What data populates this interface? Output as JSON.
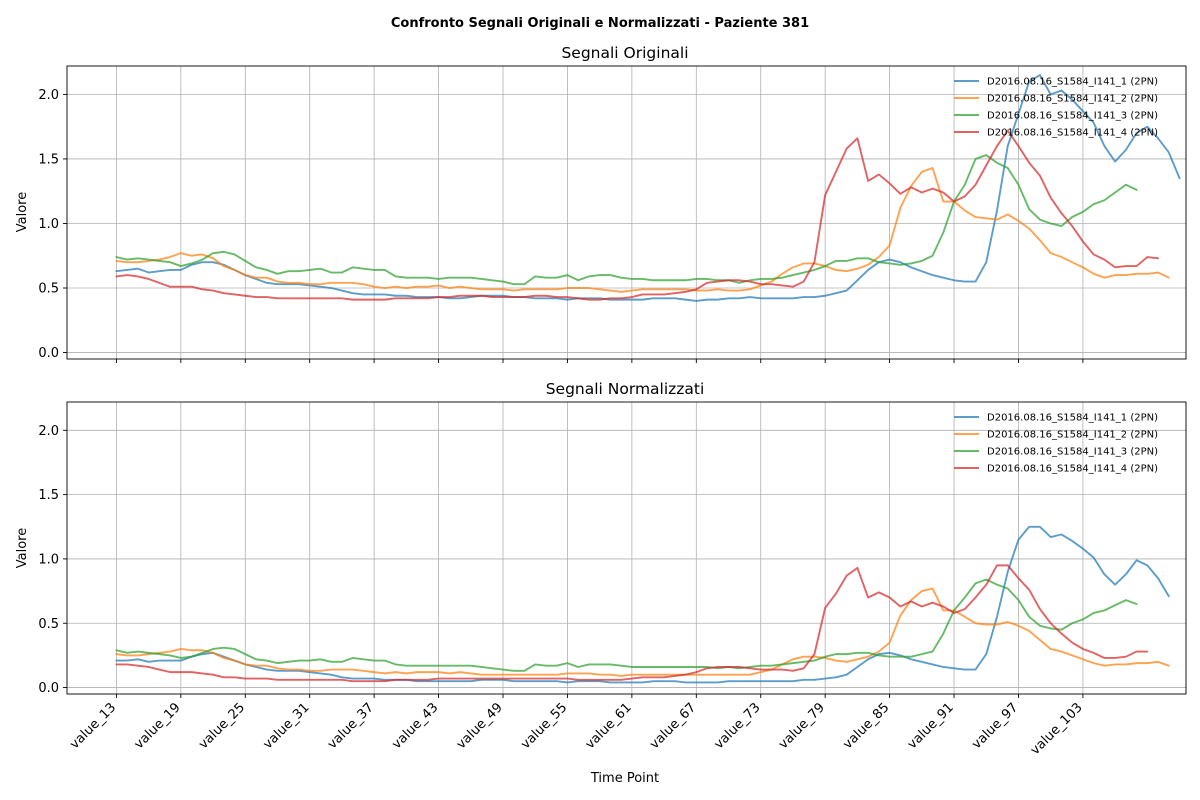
{
  "suptitle": "Confronto Segnali Originali e Normalizzati - Paziente 381",
  "series_colors": [
    "#1f77b4",
    "#ff7f0e",
    "#2ca02c",
    "#d62728"
  ],
  "chart_data": [
    {
      "type": "line",
      "title": "Segnali Originali",
      "xlabel": "",
      "ylabel": "Valore",
      "ylim": [
        -0.05,
        2.22
      ],
      "yticks": [
        0.0,
        0.5,
        1.0,
        1.5,
        2.0
      ],
      "ytick_labels": [
        "0.0",
        "0.5",
        "1.0",
        "1.5",
        "2.0"
      ],
      "grid": true,
      "legend_position": "top-right",
      "x_start_index": 13,
      "xtick_labels": [
        "value_13",
        "value_19",
        "value_25",
        "value_31",
        "value_37",
        "value_43",
        "value_49",
        "value_55",
        "value_61",
        "value_67",
        "value_73",
        "value_79",
        "value_85",
        "value_91",
        "value_97",
        "value_103"
      ],
      "series": [
        {
          "name": "D2016.08.16_S1584_I141_1 (2PN)",
          "values": [
            0.63,
            0.64,
            0.65,
            0.62,
            0.63,
            0.64,
            0.64,
            0.68,
            0.7,
            0.7,
            0.68,
            0.64,
            0.6,
            0.57,
            0.54,
            0.53,
            0.53,
            0.53,
            0.52,
            0.51,
            0.5,
            0.48,
            0.46,
            0.45,
            0.45,
            0.45,
            0.44,
            0.44,
            0.43,
            0.43,
            0.43,
            0.42,
            0.42,
            0.43,
            0.44,
            0.44,
            0.44,
            0.43,
            0.43,
            0.42,
            0.42,
            0.42,
            0.41,
            0.42,
            0.42,
            0.42,
            0.41,
            0.41,
            0.41,
            0.41,
            0.42,
            0.42,
            0.42,
            0.41,
            0.4,
            0.41,
            0.41,
            0.42,
            0.42,
            0.43,
            0.42,
            0.42,
            0.42,
            0.42,
            0.43,
            0.43,
            0.44,
            0.46,
            0.48,
            0.56,
            0.64,
            0.7,
            0.72,
            0.7,
            0.66,
            0.63,
            0.6,
            0.58,
            0.56,
            0.55,
            0.55,
            0.7,
            1.1,
            1.6,
            1.85,
            2.1,
            2.15,
            2.0,
            2.03,
            1.96,
            1.87,
            1.78,
            1.6,
            1.48,
            1.57,
            1.7,
            1.75,
            1.66,
            1.55,
            1.35
          ]
        },
        {
          "name": "D2016.08.16_S1584_I141_2 (2PN)",
          "values": [
            0.71,
            0.7,
            0.7,
            0.71,
            0.72,
            0.74,
            0.77,
            0.75,
            0.76,
            0.73,
            0.67,
            0.64,
            0.6,
            0.58,
            0.58,
            0.55,
            0.54,
            0.54,
            0.53,
            0.53,
            0.54,
            0.54,
            0.54,
            0.53,
            0.51,
            0.5,
            0.51,
            0.5,
            0.51,
            0.51,
            0.52,
            0.5,
            0.51,
            0.5,
            0.49,
            0.49,
            0.49,
            0.48,
            0.49,
            0.49,
            0.49,
            0.49,
            0.5,
            0.5,
            0.5,
            0.49,
            0.48,
            0.47,
            0.48,
            0.49,
            0.49,
            0.49,
            0.49,
            0.49,
            0.48,
            0.48,
            0.49,
            0.48,
            0.48,
            0.49,
            0.52,
            0.55,
            0.61,
            0.66,
            0.69,
            0.69,
            0.67,
            0.64,
            0.63,
            0.65,
            0.68,
            0.74,
            0.83,
            1.12,
            1.29,
            1.4,
            1.43,
            1.17,
            1.17,
            1.1,
            1.05,
            1.04,
            1.03,
            1.07,
            1.02,
            0.96,
            0.87,
            0.77,
            0.74,
            0.7,
            0.66,
            0.61,
            0.58,
            0.6,
            0.6,
            0.61,
            0.61,
            0.62,
            0.58
          ]
        },
        {
          "name": "D2016.08.16_S1584_I141_3 (2PN)",
          "values": [
            0.74,
            0.72,
            0.73,
            0.72,
            0.71,
            0.7,
            0.67,
            0.69,
            0.72,
            0.77,
            0.78,
            0.76,
            0.71,
            0.66,
            0.64,
            0.61,
            0.63,
            0.63,
            0.64,
            0.65,
            0.62,
            0.62,
            0.66,
            0.65,
            0.64,
            0.64,
            0.59,
            0.58,
            0.58,
            0.58,
            0.57,
            0.58,
            0.58,
            0.58,
            0.57,
            0.56,
            0.55,
            0.53,
            0.53,
            0.59,
            0.58,
            0.58,
            0.6,
            0.56,
            0.59,
            0.6,
            0.6,
            0.58,
            0.57,
            0.57,
            0.56,
            0.56,
            0.56,
            0.56,
            0.57,
            0.57,
            0.56,
            0.56,
            0.54,
            0.56,
            0.57,
            0.57,
            0.58,
            0.6,
            0.62,
            0.64,
            0.67,
            0.71,
            0.71,
            0.73,
            0.73,
            0.7,
            0.69,
            0.68,
            0.69,
            0.71,
            0.75,
            0.93,
            1.17,
            1.3,
            1.5,
            1.53,
            1.47,
            1.43,
            1.3,
            1.11,
            1.03,
            1.0,
            0.98,
            1.05,
            1.09,
            1.15,
            1.18,
            1.24,
            1.3,
            1.26
          ]
        },
        {
          "name": "D2016.08.16_S1584_I141_4 (2PN)",
          "values": [
            0.59,
            0.6,
            0.59,
            0.57,
            0.54,
            0.51,
            0.51,
            0.51,
            0.49,
            0.48,
            0.46,
            0.45,
            0.44,
            0.43,
            0.43,
            0.42,
            0.42,
            0.42,
            0.42,
            0.42,
            0.42,
            0.42,
            0.41,
            0.41,
            0.41,
            0.41,
            0.42,
            0.42,
            0.42,
            0.42,
            0.43,
            0.43,
            0.44,
            0.44,
            0.44,
            0.43,
            0.43,
            0.43,
            0.43,
            0.44,
            0.44,
            0.43,
            0.43,
            0.42,
            0.41,
            0.41,
            0.42,
            0.42,
            0.43,
            0.45,
            0.45,
            0.45,
            0.46,
            0.47,
            0.49,
            0.54,
            0.55,
            0.56,
            0.56,
            0.55,
            0.53,
            0.53,
            0.52,
            0.51,
            0.55,
            0.7,
            1.22,
            1.4,
            1.58,
            1.66,
            1.33,
            1.38,
            1.31,
            1.23,
            1.28,
            1.24,
            1.27,
            1.24,
            1.17,
            1.21,
            1.3,
            1.45,
            1.6,
            1.72,
            1.6,
            1.47,
            1.37,
            1.2,
            1.08,
            0.98,
            0.86,
            0.76,
            0.72,
            0.66,
            0.67,
            0.67,
            0.74,
            0.73
          ]
        }
      ]
    },
    {
      "type": "line",
      "title": "Segnali Normalizzati",
      "xlabel": "Time Point",
      "ylabel": "Valore",
      "ylim": [
        -0.05,
        2.22
      ],
      "yticks": [
        0.0,
        0.5,
        1.0,
        1.5,
        2.0
      ],
      "ytick_labels": [
        "0.0",
        "0.5",
        "1.0",
        "1.5",
        "2.0"
      ],
      "grid": true,
      "legend_position": "top-right",
      "x_start_index": 13,
      "xtick_labels": [
        "value_13",
        "value_19",
        "value_25",
        "value_31",
        "value_37",
        "value_43",
        "value_49",
        "value_55",
        "value_61",
        "value_67",
        "value_73",
        "value_79",
        "value_85",
        "value_91",
        "value_97",
        "value_103"
      ],
      "series": [
        {
          "name": "D2016.08.16_S1584_I141_1 (2PN)",
          "values": [
            0.21,
            0.21,
            0.22,
            0.2,
            0.21,
            0.21,
            0.21,
            0.24,
            0.26,
            0.27,
            0.24,
            0.21,
            0.18,
            0.16,
            0.14,
            0.13,
            0.13,
            0.13,
            0.12,
            0.11,
            0.1,
            0.08,
            0.07,
            0.07,
            0.07,
            0.06,
            0.06,
            0.06,
            0.05,
            0.05,
            0.05,
            0.05,
            0.05,
            0.05,
            0.06,
            0.06,
            0.06,
            0.05,
            0.05,
            0.05,
            0.05,
            0.05,
            0.04,
            0.05,
            0.05,
            0.05,
            0.04,
            0.04,
            0.04,
            0.04,
            0.05,
            0.05,
            0.05,
            0.04,
            0.04,
            0.04,
            0.04,
            0.05,
            0.05,
            0.05,
            0.05,
            0.05,
            0.05,
            0.05,
            0.06,
            0.06,
            0.07,
            0.08,
            0.1,
            0.16,
            0.22,
            0.26,
            0.27,
            0.25,
            0.22,
            0.2,
            0.18,
            0.16,
            0.15,
            0.14,
            0.14,
            0.26,
            0.55,
            0.9,
            1.15,
            1.25,
            1.25,
            1.17,
            1.19,
            1.14,
            1.08,
            1.01,
            0.88,
            0.8,
            0.88,
            0.99,
            0.95,
            0.85,
            0.71
          ]
        },
        {
          "name": "D2016.08.16_S1584_I141_2 (2PN)",
          "values": [
            0.26,
            0.25,
            0.25,
            0.26,
            0.27,
            0.28,
            0.3,
            0.29,
            0.29,
            0.27,
            0.23,
            0.21,
            0.18,
            0.17,
            0.17,
            0.15,
            0.14,
            0.14,
            0.13,
            0.13,
            0.14,
            0.14,
            0.14,
            0.13,
            0.12,
            0.11,
            0.12,
            0.11,
            0.12,
            0.12,
            0.12,
            0.11,
            0.12,
            0.11,
            0.1,
            0.1,
            0.1,
            0.1,
            0.1,
            0.1,
            0.1,
            0.1,
            0.11,
            0.11,
            0.11,
            0.1,
            0.1,
            0.09,
            0.1,
            0.1,
            0.1,
            0.1,
            0.1,
            0.1,
            0.1,
            0.1,
            0.1,
            0.1,
            0.1,
            0.1,
            0.12,
            0.14,
            0.18,
            0.22,
            0.24,
            0.24,
            0.23,
            0.21,
            0.2,
            0.22,
            0.24,
            0.28,
            0.35,
            0.56,
            0.68,
            0.75,
            0.77,
            0.6,
            0.6,
            0.55,
            0.5,
            0.49,
            0.49,
            0.51,
            0.48,
            0.44,
            0.37,
            0.3,
            0.28,
            0.25,
            0.22,
            0.19,
            0.17,
            0.18,
            0.18,
            0.19,
            0.19,
            0.2,
            0.17
          ]
        },
        {
          "name": "D2016.08.16_S1584_I141_3 (2PN)",
          "values": [
            0.29,
            0.27,
            0.28,
            0.27,
            0.26,
            0.25,
            0.23,
            0.24,
            0.27,
            0.3,
            0.31,
            0.3,
            0.26,
            0.22,
            0.21,
            0.19,
            0.2,
            0.21,
            0.21,
            0.22,
            0.2,
            0.2,
            0.23,
            0.22,
            0.21,
            0.21,
            0.18,
            0.17,
            0.17,
            0.17,
            0.17,
            0.17,
            0.17,
            0.17,
            0.16,
            0.15,
            0.14,
            0.13,
            0.13,
            0.18,
            0.17,
            0.17,
            0.19,
            0.16,
            0.18,
            0.18,
            0.18,
            0.17,
            0.16,
            0.16,
            0.16,
            0.16,
            0.16,
            0.16,
            0.16,
            0.16,
            0.15,
            0.16,
            0.15,
            0.16,
            0.17,
            0.17,
            0.18,
            0.19,
            0.2,
            0.21,
            0.24,
            0.26,
            0.26,
            0.27,
            0.27,
            0.25,
            0.24,
            0.24,
            0.24,
            0.26,
            0.28,
            0.42,
            0.6,
            0.7,
            0.81,
            0.84,
            0.8,
            0.77,
            0.68,
            0.55,
            0.48,
            0.46,
            0.45,
            0.5,
            0.53,
            0.58,
            0.6,
            0.64,
            0.68,
            0.65
          ]
        },
        {
          "name": "D2016.08.16_S1584_I141_4 (2PN)",
          "values": [
            0.18,
            0.18,
            0.17,
            0.16,
            0.14,
            0.12,
            0.12,
            0.12,
            0.11,
            0.1,
            0.08,
            0.08,
            0.07,
            0.07,
            0.07,
            0.06,
            0.06,
            0.06,
            0.06,
            0.06,
            0.06,
            0.06,
            0.05,
            0.05,
            0.05,
            0.05,
            0.06,
            0.06,
            0.06,
            0.06,
            0.07,
            0.07,
            0.07,
            0.07,
            0.07,
            0.07,
            0.07,
            0.07,
            0.07,
            0.07,
            0.07,
            0.07,
            0.07,
            0.06,
            0.06,
            0.06,
            0.06,
            0.06,
            0.07,
            0.08,
            0.08,
            0.08,
            0.09,
            0.1,
            0.12,
            0.15,
            0.16,
            0.16,
            0.16,
            0.15,
            0.14,
            0.14,
            0.14,
            0.13,
            0.15,
            0.26,
            0.62,
            0.73,
            0.87,
            0.93,
            0.7,
            0.74,
            0.7,
            0.63,
            0.67,
            0.63,
            0.66,
            0.63,
            0.58,
            0.61,
            0.7,
            0.8,
            0.95,
            0.95,
            0.85,
            0.76,
            0.61,
            0.5,
            0.42,
            0.35,
            0.3,
            0.27,
            0.23,
            0.23,
            0.24,
            0.28,
            0.28
          ]
        }
      ]
    }
  ]
}
